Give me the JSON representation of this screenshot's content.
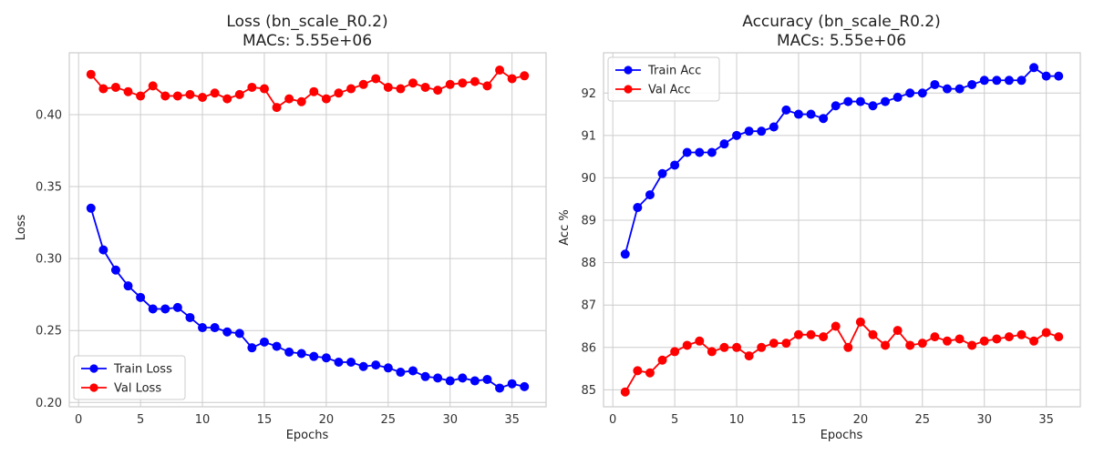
{
  "colors": {
    "train": "#0000ff",
    "val": "#ff0000"
  },
  "chart_data": [
    {
      "type": "line",
      "title_line1": "Loss (bn_scale_R0.2)",
      "title_line2": "MACs: 5.55e+06",
      "xlabel": "Epochs",
      "ylabel": "Loss",
      "xlim": [
        -0.75,
        37.75
      ],
      "ylim": [
        0.197,
        0.443
      ],
      "xticks": [
        0,
        5,
        10,
        15,
        20,
        25,
        30,
        35
      ],
      "yticks": [
        0.2,
        0.25,
        0.3,
        0.35,
        0.4
      ],
      "ytick_labels": [
        "0.20",
        "0.25",
        "0.30",
        "0.35",
        "0.40"
      ],
      "legend_position": "lower-left",
      "grid": true,
      "x": [
        1,
        2,
        3,
        4,
        5,
        6,
        7,
        8,
        9,
        10,
        11,
        12,
        13,
        14,
        15,
        16,
        17,
        18,
        19,
        20,
        21,
        22,
        23,
        24,
        25,
        26,
        27,
        28,
        29,
        30,
        31,
        32,
        33,
        34,
        35,
        36
      ],
      "series": [
        {
          "name": "Train Loss",
          "color": "#0000ff",
          "values": [
            0.335,
            0.306,
            0.292,
            0.281,
            0.273,
            0.265,
            0.265,
            0.266,
            0.259,
            0.252,
            0.252,
            0.249,
            0.248,
            0.238,
            0.242,
            0.239,
            0.235,
            0.234,
            0.232,
            0.231,
            0.228,
            0.228,
            0.225,
            0.226,
            0.224,
            0.221,
            0.222,
            0.218,
            0.217,
            0.215,
            0.217,
            0.215,
            0.216,
            0.21,
            0.213,
            0.211
          ]
        },
        {
          "name": "Val Loss",
          "color": "#ff0000",
          "values": [
            0.428,
            0.418,
            0.419,
            0.416,
            0.413,
            0.42,
            0.413,
            0.413,
            0.414,
            0.412,
            0.415,
            0.411,
            0.414,
            0.419,
            0.418,
            0.405,
            0.411,
            0.409,
            0.416,
            0.411,
            0.415,
            0.418,
            0.421,
            0.425,
            0.419,
            0.418,
            0.422,
            0.419,
            0.417,
            0.421,
            0.422,
            0.423,
            0.42,
            0.431,
            0.425,
            0.427
          ]
        }
      ]
    },
    {
      "type": "line",
      "title_line1": "Accuracy (bn_scale_R0.2)",
      "title_line2": "MACs: 5.55e+06",
      "xlabel": "Epochs",
      "ylabel": "Acc %",
      "xlim": [
        -0.75,
        37.75
      ],
      "ylim": [
        84.6,
        92.95
      ],
      "xticks": [
        0,
        5,
        10,
        15,
        20,
        25,
        30,
        35
      ],
      "yticks": [
        85,
        86,
        87,
        88,
        89,
        90,
        91,
        92
      ],
      "ytick_labels": [
        "85",
        "86",
        "87",
        "88",
        "89",
        "90",
        "91",
        "92"
      ],
      "legend_position": "upper-left",
      "grid": true,
      "x": [
        1,
        2,
        3,
        4,
        5,
        6,
        7,
        8,
        9,
        10,
        11,
        12,
        13,
        14,
        15,
        16,
        17,
        18,
        19,
        20,
        21,
        22,
        23,
        24,
        25,
        26,
        27,
        28,
        29,
        30,
        31,
        32,
        33,
        34,
        35,
        36
      ],
      "series": [
        {
          "name": "Train Acc",
          "color": "#0000ff",
          "values": [
            88.2,
            89.3,
            89.6,
            90.1,
            90.3,
            90.6,
            90.6,
            90.6,
            90.8,
            91.0,
            91.1,
            91.1,
            91.2,
            91.6,
            91.5,
            91.5,
            91.4,
            91.7,
            91.8,
            91.8,
            91.7,
            91.8,
            91.9,
            92.0,
            92.0,
            92.2,
            92.1,
            92.1,
            92.2,
            92.3,
            92.3,
            92.3,
            92.3,
            92.6,
            92.4,
            92.4
          ]
        },
        {
          "name": "Val Acc",
          "color": "#ff0000",
          "values": [
            84.95,
            85.45,
            85.4,
            85.7,
            85.9,
            86.05,
            86.15,
            85.9,
            86.0,
            86.0,
            85.8,
            86.0,
            86.1,
            86.1,
            86.3,
            86.3,
            86.25,
            86.5,
            86.0,
            86.6,
            86.3,
            86.05,
            86.4,
            86.05,
            86.1,
            86.25,
            86.15,
            86.2,
            86.05,
            86.15,
            86.2,
            86.25,
            86.3,
            86.15,
            86.35,
            86.25
          ]
        }
      ]
    }
  ]
}
